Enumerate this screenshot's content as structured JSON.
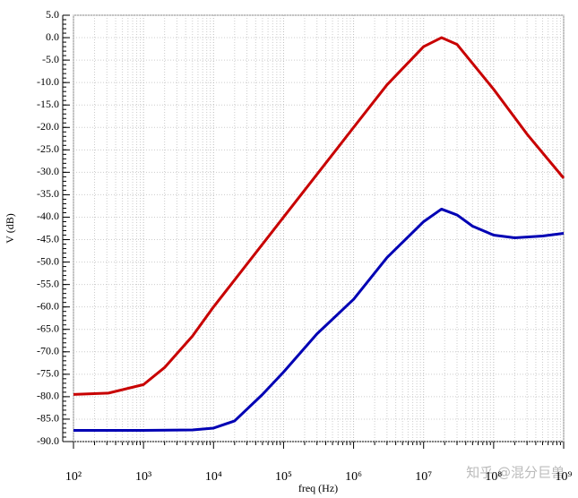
{
  "chart_data": {
    "type": "line",
    "xlabel": "freq (Hz)",
    "ylabel": "V (dB)",
    "log_x": true,
    "grid": true,
    "xlim": [
      100,
      1000000000
    ],
    "xticks": [
      {
        "value": 100,
        "label": "10²"
      },
      {
        "value": 1000,
        "label": "10³"
      },
      {
        "value": 10000,
        "label": "10⁴"
      },
      {
        "value": 100000,
        "label": "10⁵"
      },
      {
        "value": 1000000,
        "label": "10⁶"
      },
      {
        "value": 10000000,
        "label": "10⁷"
      },
      {
        "value": 100000000,
        "label": "10⁸"
      },
      {
        "value": 1000000000,
        "label": "10⁹"
      }
    ],
    "ylim": [
      -90,
      5
    ],
    "yticks": [
      {
        "value": 5,
        "label": "5.0"
      },
      {
        "value": 0,
        "label": "0.0"
      },
      {
        "value": -5,
        "label": "-5.0"
      },
      {
        "value": -10,
        "label": "-10.0"
      },
      {
        "value": -15,
        "label": "-15.0"
      },
      {
        "value": -20,
        "label": "-20.0"
      },
      {
        "value": -25,
        "label": "-25.0"
      },
      {
        "value": -30,
        "label": "-30.0"
      },
      {
        "value": -35,
        "label": "-35.0"
      },
      {
        "value": -40,
        "label": "-40.0"
      },
      {
        "value": -45,
        "label": "-45.0"
      },
      {
        "value": -50,
        "label": "-50.0"
      },
      {
        "value": -55,
        "label": "-55.0"
      },
      {
        "value": -60,
        "label": "-60.0"
      },
      {
        "value": -65,
        "label": "-65.0"
      },
      {
        "value": -70,
        "label": "-70.0"
      },
      {
        "value": -75,
        "label": "-75.0"
      },
      {
        "value": -80,
        "label": "-80.0"
      },
      {
        "value": -85,
        "label": "-85.0"
      },
      {
        "value": -90,
        "label": "-90.0"
      }
    ],
    "series": [
      {
        "color": "#c80000",
        "x": [
          100,
          316,
          1000,
          2000,
          5000,
          10000,
          100000,
          1000000,
          3000000,
          10000000,
          18000000,
          30000000,
          100000000,
          300000000,
          1000000000
        ],
        "values": [
          -79.5,
          -79.2,
          -77.3,
          -73.5,
          -66.5,
          -60,
          -40,
          -20,
          -10.5,
          -2,
          0,
          -1.5,
          -11.5,
          -21.5,
          -31.3
        ]
      },
      {
        "color": "#0000b4",
        "x": [
          100,
          1000,
          5000,
          10000,
          20000,
          50000,
          100000,
          300000,
          1000000,
          3000000,
          10000000,
          18000000,
          30000000,
          50000000,
          100000000,
          200000000,
          500000000,
          1000000000
        ],
        "values": [
          -87.5,
          -87.5,
          -87.4,
          -87,
          -85.4,
          -79.5,
          -74.5,
          -66,
          -58.3,
          -49,
          -41,
          -38.2,
          -39.5,
          -42,
          -44,
          -44.6,
          -44.2,
          -43.6
        ]
      }
    ],
    "watermark": "知乎 @混分巨兽"
  }
}
